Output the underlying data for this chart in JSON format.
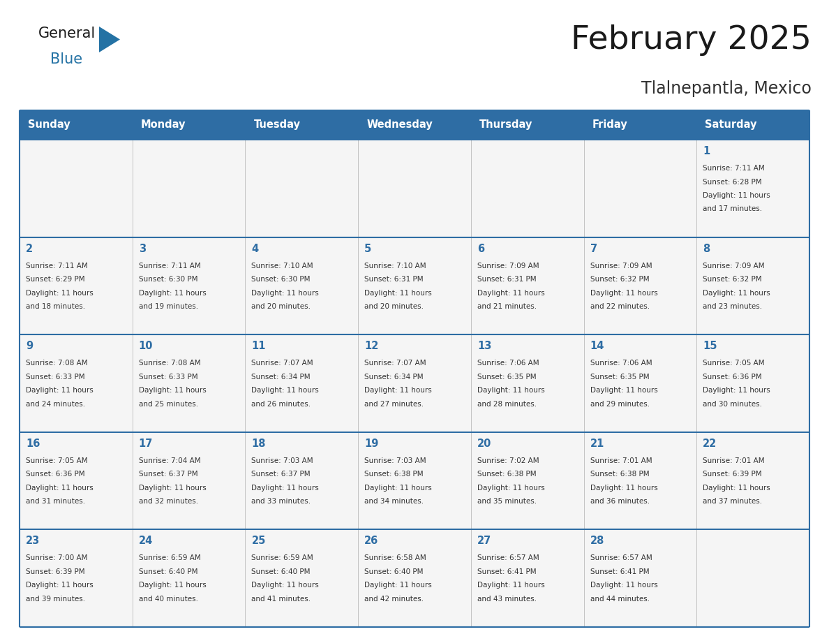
{
  "title": "February 2025",
  "subtitle": "Tlalnepantla, Mexico",
  "days_of_week": [
    "Sunday",
    "Monday",
    "Tuesday",
    "Wednesday",
    "Thursday",
    "Friday",
    "Saturday"
  ],
  "header_bg": "#2E6DA4",
  "header_text": "#FFFFFF",
  "cell_bg": "#F5F5F5",
  "cell_text": "#333333",
  "day_num_color": "#2E6DA4",
  "border_color": "#2E6DA4",
  "logo_general_color": "#1a1a1a",
  "logo_blue_color": "#2472A4",
  "calendar_data": [
    [
      null,
      null,
      null,
      null,
      null,
      null,
      1
    ],
    [
      2,
      3,
      4,
      5,
      6,
      7,
      8
    ],
    [
      9,
      10,
      11,
      12,
      13,
      14,
      15
    ],
    [
      16,
      17,
      18,
      19,
      20,
      21,
      22
    ],
    [
      23,
      24,
      25,
      26,
      27,
      28,
      null
    ]
  ],
  "cell_info": {
    "1": {
      "sunrise": "7:11 AM",
      "sunset": "6:28 PM",
      "daylight_h": "11 hours",
      "daylight_m": "and 17 minutes."
    },
    "2": {
      "sunrise": "7:11 AM",
      "sunset": "6:29 PM",
      "daylight_h": "11 hours",
      "daylight_m": "and 18 minutes."
    },
    "3": {
      "sunrise": "7:11 AM",
      "sunset": "6:30 PM",
      "daylight_h": "11 hours",
      "daylight_m": "and 19 minutes."
    },
    "4": {
      "sunrise": "7:10 AM",
      "sunset": "6:30 PM",
      "daylight_h": "11 hours",
      "daylight_m": "and 20 minutes."
    },
    "5": {
      "sunrise": "7:10 AM",
      "sunset": "6:31 PM",
      "daylight_h": "11 hours",
      "daylight_m": "and 20 minutes."
    },
    "6": {
      "sunrise": "7:09 AM",
      "sunset": "6:31 PM",
      "daylight_h": "11 hours",
      "daylight_m": "and 21 minutes."
    },
    "7": {
      "sunrise": "7:09 AM",
      "sunset": "6:32 PM",
      "daylight_h": "11 hours",
      "daylight_m": "and 22 minutes."
    },
    "8": {
      "sunrise": "7:09 AM",
      "sunset": "6:32 PM",
      "daylight_h": "11 hours",
      "daylight_m": "and 23 minutes."
    },
    "9": {
      "sunrise": "7:08 AM",
      "sunset": "6:33 PM",
      "daylight_h": "11 hours",
      "daylight_m": "and 24 minutes."
    },
    "10": {
      "sunrise": "7:08 AM",
      "sunset": "6:33 PM",
      "daylight_h": "11 hours",
      "daylight_m": "and 25 minutes."
    },
    "11": {
      "sunrise": "7:07 AM",
      "sunset": "6:34 PM",
      "daylight_h": "11 hours",
      "daylight_m": "and 26 minutes."
    },
    "12": {
      "sunrise": "7:07 AM",
      "sunset": "6:34 PM",
      "daylight_h": "11 hours",
      "daylight_m": "and 27 minutes."
    },
    "13": {
      "sunrise": "7:06 AM",
      "sunset": "6:35 PM",
      "daylight_h": "11 hours",
      "daylight_m": "and 28 minutes."
    },
    "14": {
      "sunrise": "7:06 AM",
      "sunset": "6:35 PM",
      "daylight_h": "11 hours",
      "daylight_m": "and 29 minutes."
    },
    "15": {
      "sunrise": "7:05 AM",
      "sunset": "6:36 PM",
      "daylight_h": "11 hours",
      "daylight_m": "and 30 minutes."
    },
    "16": {
      "sunrise": "7:05 AM",
      "sunset": "6:36 PM",
      "daylight_h": "11 hours",
      "daylight_m": "and 31 minutes."
    },
    "17": {
      "sunrise": "7:04 AM",
      "sunset": "6:37 PM",
      "daylight_h": "11 hours",
      "daylight_m": "and 32 minutes."
    },
    "18": {
      "sunrise": "7:03 AM",
      "sunset": "6:37 PM",
      "daylight_h": "11 hours",
      "daylight_m": "and 33 minutes."
    },
    "19": {
      "sunrise": "7:03 AM",
      "sunset": "6:38 PM",
      "daylight_h": "11 hours",
      "daylight_m": "and 34 minutes."
    },
    "20": {
      "sunrise": "7:02 AM",
      "sunset": "6:38 PM",
      "daylight_h": "11 hours",
      "daylight_m": "and 35 minutes."
    },
    "21": {
      "sunrise": "7:01 AM",
      "sunset": "6:38 PM",
      "daylight_h": "11 hours",
      "daylight_m": "and 36 minutes."
    },
    "22": {
      "sunrise": "7:01 AM",
      "sunset": "6:39 PM",
      "daylight_h": "11 hours",
      "daylight_m": "and 37 minutes."
    },
    "23": {
      "sunrise": "7:00 AM",
      "sunset": "6:39 PM",
      "daylight_h": "11 hours",
      "daylight_m": "and 39 minutes."
    },
    "24": {
      "sunrise": "6:59 AM",
      "sunset": "6:40 PM",
      "daylight_h": "11 hours",
      "daylight_m": "and 40 minutes."
    },
    "25": {
      "sunrise": "6:59 AM",
      "sunset": "6:40 PM",
      "daylight_h": "11 hours",
      "daylight_m": "and 41 minutes."
    },
    "26": {
      "sunrise": "6:58 AM",
      "sunset": "6:40 PM",
      "daylight_h": "11 hours",
      "daylight_m": "and 42 minutes."
    },
    "27": {
      "sunrise": "6:57 AM",
      "sunset": "6:41 PM",
      "daylight_h": "11 hours",
      "daylight_m": "and 43 minutes."
    },
    "28": {
      "sunrise": "6:57 AM",
      "sunset": "6:41 PM",
      "daylight_h": "11 hours",
      "daylight_m": "and 44 minutes."
    }
  },
  "fig_width": 11.88,
  "fig_height": 9.18,
  "dpi": 100
}
